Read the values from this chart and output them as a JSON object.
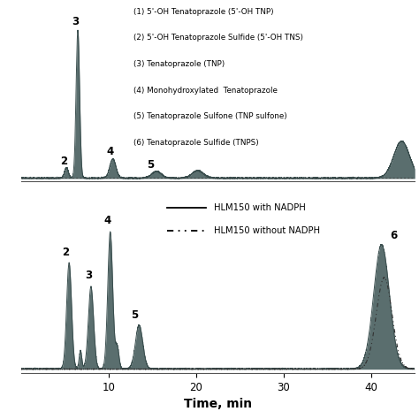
{
  "xlim": [
    0,
    45
  ],
  "xticks": [
    10,
    20,
    30,
    40
  ],
  "xlabel": "Time, min",
  "fill_color": "#5a6e6e",
  "line_color": "#3a4e4e",
  "bg_color": "#ffffff",
  "legend_text_top": [
    "(1) 5'-OH Tenatoprazole (5'-OH TNP)",
    "(2) 5'-OH Tenatoprazole Sulfide (5'-OH TNS)",
    "(3) Tenatoprazole (TNP)",
    "(4) Monohydroxylated  Tenatoprazole",
    "(5) Tenatoprazole Sulfone (TNP sulfone)",
    "(6) Tenatoprazole Sulfide (TNPS)"
  ],
  "legend_solid": "HLM150 with NADPH",
  "legend_dashed": "HLM150 without NADPH"
}
